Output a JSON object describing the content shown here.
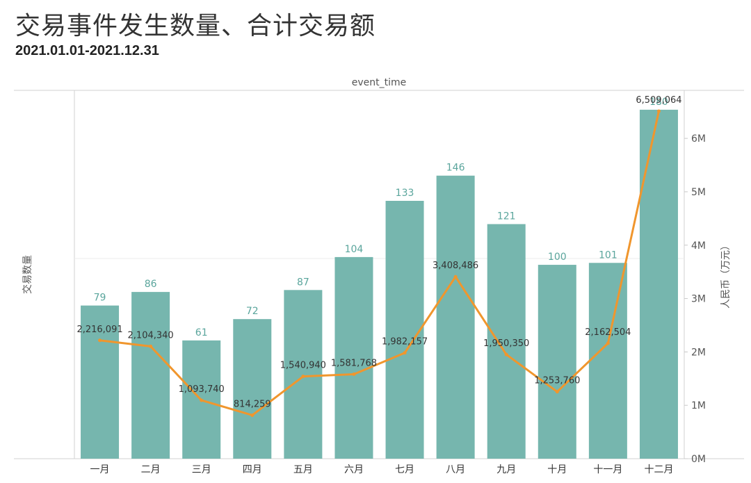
{
  "title": "交易事件发生数量、合计交易额",
  "subtitle": "2021.01.01-2021.12.31",
  "chart_data": {
    "type": "bar",
    "header_label": "event_time",
    "categories": [
      "一月",
      "二月",
      "三月",
      "四月",
      "五月",
      "六月",
      "七月",
      "八月",
      "九月",
      "十月",
      "十一月",
      "十二月"
    ],
    "series": [
      {
        "type": "bar",
        "axis": "left",
        "color": "#76b6ae",
        "values": [
          79,
          86,
          61,
          72,
          87,
          104,
          133,
          146,
          121,
          100,
          101,
          180
        ]
      },
      {
        "type": "line",
        "axis": "right",
        "color": "#f0962d",
        "values": [
          2216091,
          2104340,
          1093740,
          814259,
          1540940,
          1581768,
          1982157,
          3408486,
          1950350,
          1253760,
          2162504,
          6509064
        ],
        "labels": [
          "2,216,091",
          "2,104,340",
          "1,093,740",
          "814,259",
          "1,540,940",
          "1,581,768",
          "1,982,157",
          "3,408,486",
          "1,950,350",
          "1,253,760",
          "2,162,504",
          "6,509,064"
        ]
      }
    ],
    "ylabel_left": "交易数量",
    "ylabel_right": "人民币（万元）",
    "ylim_left": [
      0,
      190
    ],
    "ylim_right": [
      0,
      6900000
    ],
    "right_ticks": [
      "0M",
      "1M",
      "2M",
      "3M",
      "4M",
      "5M",
      "6M"
    ],
    "grid": false
  }
}
